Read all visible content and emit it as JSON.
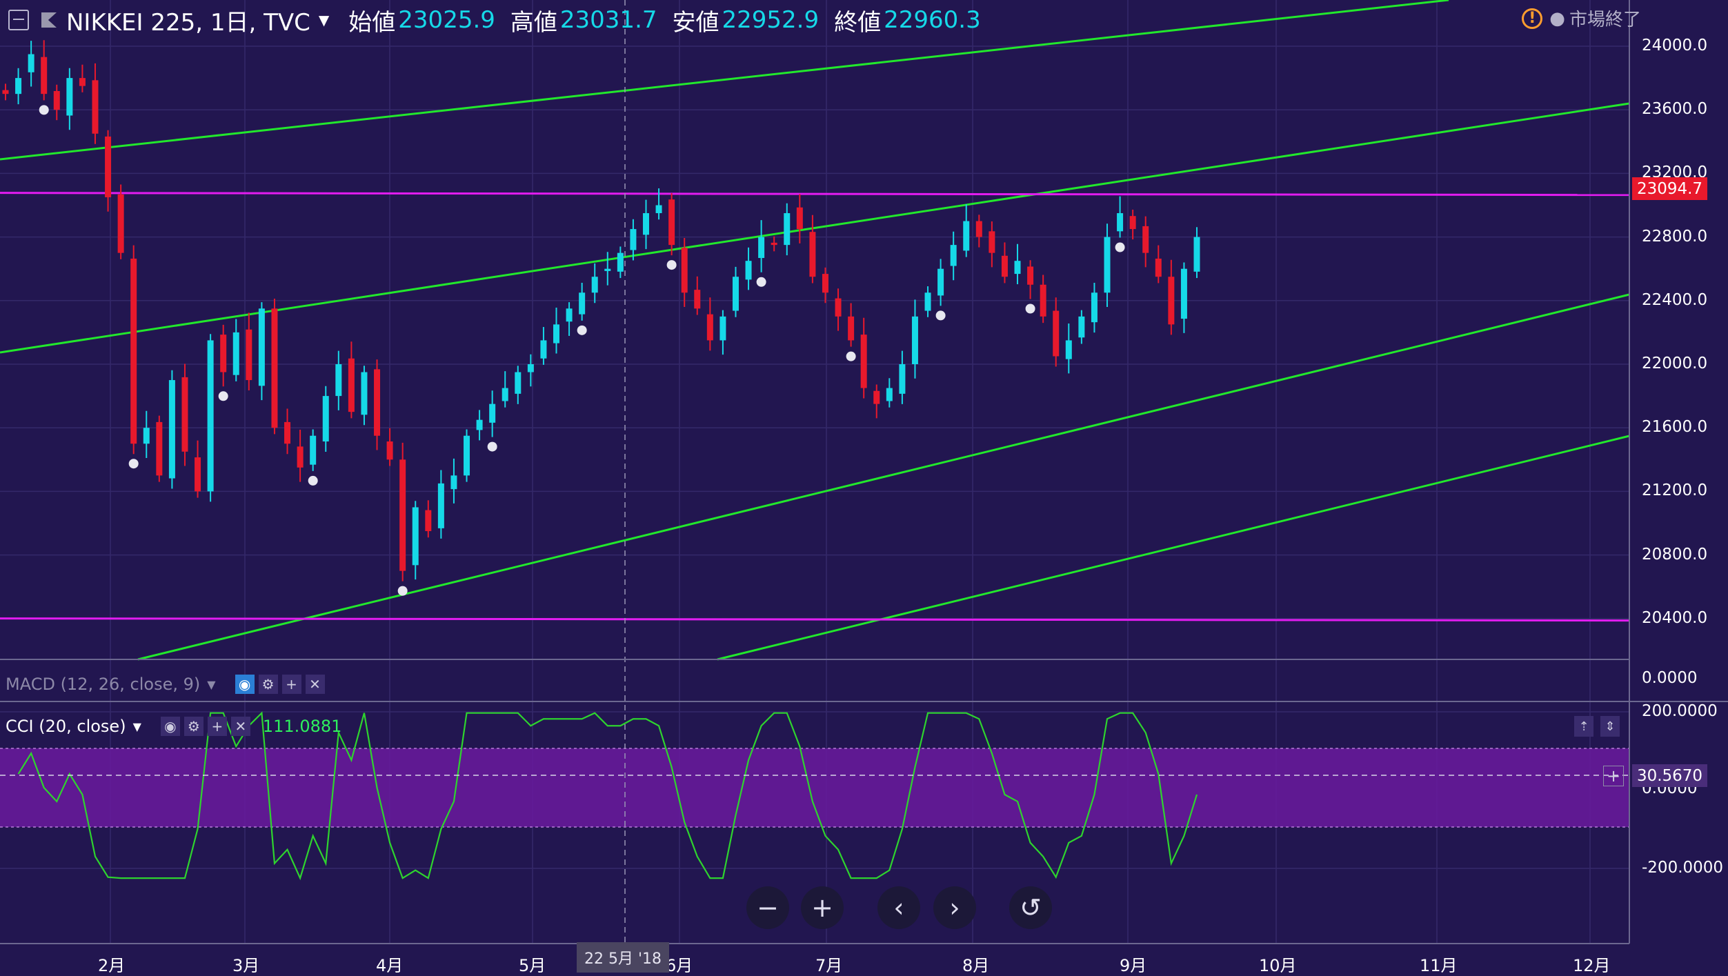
{
  "header": {
    "symbol": "NIKKEI 225, 1日, TVC",
    "open_label": "始値",
    "open": "23025.9",
    "high_label": "高値",
    "high": "23031.7",
    "low_label": "安値",
    "low": "22952.9",
    "close_label": "終値",
    "close": "22960.3"
  },
  "market_status": "市場終了",
  "price_tag": "23094.7",
  "y_ticks": [
    "24000.0",
    "23600.0",
    "23200.0",
    "22800.0",
    "22400.0",
    "22000.0",
    "21600.0",
    "21200.0",
    "20800.0",
    "20400.0"
  ],
  "macd": {
    "title": "MACD (12, 26, close, 9)",
    "axis_value": "0.0000"
  },
  "cci": {
    "title": "CCI (20, close)",
    "value": "111.0881",
    "last_value": "30.5670",
    "y_ticks": [
      "200.0000",
      "0.0000",
      "-200.0000"
    ]
  },
  "x_axis": {
    "labels": [
      "2月",
      "3月",
      "4月",
      "5月",
      "6月",
      "7月",
      "8月",
      "9月",
      "10月",
      "11月",
      "12月"
    ],
    "cursor_label": "22 5月 '18"
  },
  "nav_buttons": {
    "zoom_out": "−",
    "zoom_in": "+",
    "back": "‹",
    "forward": "›",
    "reset": "↺"
  },
  "colors": {
    "background": "#221650",
    "up": "#16d9e8",
    "down": "#e8192c",
    "trendline": "#22e82c",
    "hline": "#e21cf0",
    "cci_band": "#6a1a9e",
    "cci_line": "#2ed42e"
  },
  "chart_data": {
    "type": "candlestick",
    "instrument": "NIKKEI 225",
    "price_scale": [
      20200,
      24200
    ],
    "horizontal_lines": [
      23094.7,
      20414
    ],
    "cci_band": [
      -100,
      100
    ],
    "last_ohlc": {
      "open": 23025.9,
      "high": 23031.7,
      "low": 22952.9,
      "close": 22960.3
    },
    "closes": [
      23700,
      23800,
      23950,
      23700,
      23600,
      23800,
      23750,
      23450,
      23050,
      22700,
      21500,
      21600,
      21300,
      21900,
      21450,
      21200,
      22150,
      21950,
      22200,
      21900,
      22350,
      21600,
      21500,
      21350,
      21550,
      21800,
      22000,
      21700,
      21950,
      21550,
      21400,
      20700,
      21100,
      20950,
      21250,
      21300,
      21550,
      21650,
      21750,
      21850,
      21950,
      22000,
      22150,
      22250,
      22350,
      22450,
      22550,
      22600,
      22700,
      22850,
      22950,
      23000,
      22750,
      22450,
      22350,
      22150,
      22300,
      22550,
      22650,
      22800,
      22750,
      22950,
      22850,
      22550,
      22450,
      22300,
      22150,
      21850,
      21750,
      21850,
      22000,
      22300,
      22450,
      22600,
      22750,
      22900,
      22800,
      22700,
      22550,
      22650,
      22500,
      22300,
      22050,
      22150,
      22300,
      22450,
      22800,
      22950,
      22850,
      22700,
      22550,
      22250,
      22600,
      22800
    ]
  }
}
